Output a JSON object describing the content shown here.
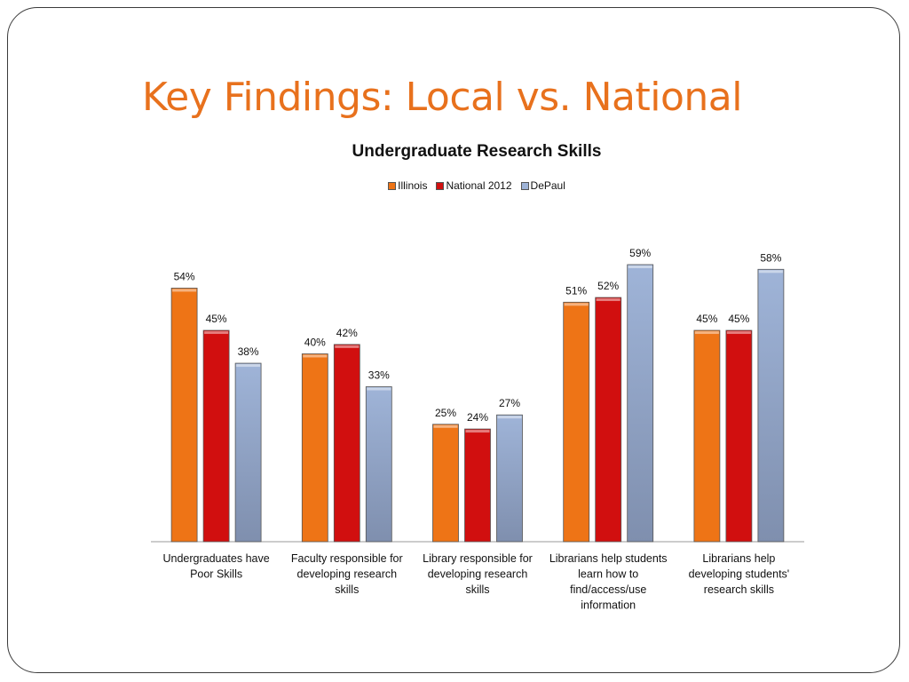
{
  "slide": {
    "title": "Key Findings: Local vs. National"
  },
  "chart_data": {
    "type": "bar",
    "title": "Undergraduate Research Skills",
    "categories": [
      [
        "Undergraduates have",
        "Poor Skills"
      ],
      [
        "Faculty responsible for",
        "developing research",
        "skills"
      ],
      [
        "Library responsible for",
        "developing research",
        "skills"
      ],
      [
        "Librarians help students",
        "learn how to",
        "find/access/use",
        "information"
      ],
      [
        "Librarians help",
        "developing students'",
        "research skills"
      ]
    ],
    "series": [
      {
        "name": "Illinois",
        "values": [
          54,
          40,
          25,
          51,
          45
        ],
        "labels": [
          "54%",
          "40%",
          "25%",
          "51%",
          "45%"
        ],
        "color": "#ee7416"
      },
      {
        "name": "National 2012",
        "values": [
          45,
          42,
          24,
          52,
          45
        ],
        "labels": [
          "45%",
          "42%",
          "24%",
          "52%",
          "45%"
        ],
        "color": "#d10f0f"
      },
      {
        "name": "DePaul",
        "values": [
          38,
          33,
          27,
          59,
          58
        ],
        "labels": [
          "38%",
          "33%",
          "27%",
          "59%",
          "58%"
        ],
        "color": "#9fb4d8"
      }
    ],
    "ylim": [
      0,
      60
    ],
    "grid": false,
    "legend_position": "top"
  }
}
